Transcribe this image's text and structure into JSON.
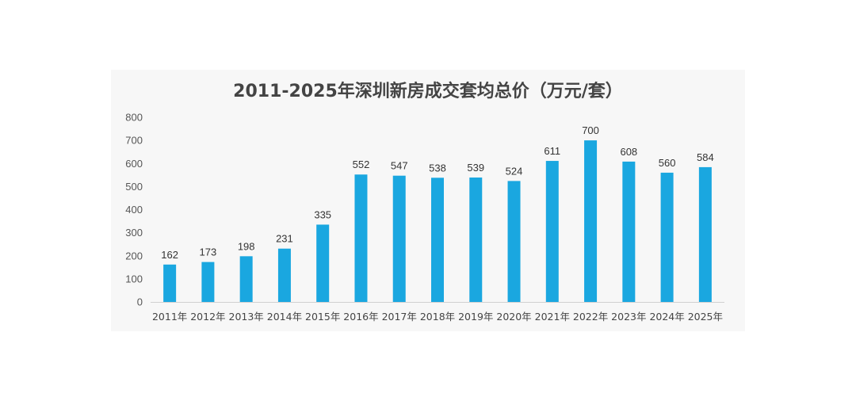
{
  "chart_data": {
    "type": "bar",
    "title": "2011-2025年深圳新房成交套均总价（万元/套）",
    "xlabel": "",
    "ylabel": "",
    "categories": [
      "2011年",
      "2012年",
      "2013年",
      "2014年",
      "2015年",
      "2016年",
      "2017年",
      "2018年",
      "2019年",
      "2020年",
      "2021年",
      "2022年",
      "2023年",
      "2024年",
      "2025年"
    ],
    "values": [
      162,
      173,
      198,
      231,
      335,
      552,
      547,
      538,
      539,
      524,
      611,
      700,
      608,
      560,
      584
    ],
    "ylim": [
      0,
      800
    ],
    "yticks": [
      0,
      100,
      200,
      300,
      400,
      500,
      600,
      700,
      800
    ],
    "grid": false,
    "legend": "none",
    "bar_color": "#1aa7e0",
    "axis_color": "#d0d0d0"
  }
}
